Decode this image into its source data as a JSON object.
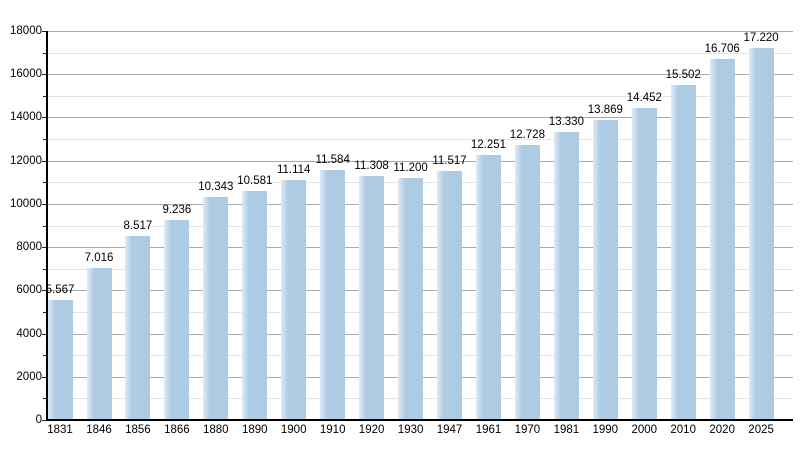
{
  "chart_data": {
    "type": "bar",
    "title": "",
    "xlabel": "",
    "ylabel": "",
    "categories": [
      "1831",
      "1846",
      "1856",
      "1866",
      "1880",
      "1890",
      "1900",
      "1910",
      "1920",
      "1930",
      "1947",
      "1961",
      "1970",
      "1981",
      "1990",
      "2000",
      "2010",
      "2020",
      "2025"
    ],
    "values": [
      5567,
      7016,
      8517,
      9236,
      10343,
      10581,
      11114,
      11584,
      11308,
      11200,
      11517,
      12251,
      12728,
      13330,
      13869,
      14452,
      15502,
      16706,
      17220
    ],
    "value_labels": [
      "5.567",
      "7.016",
      "8.517",
      "9.236",
      "10.343",
      "10.581",
      "11.114",
      "11.584",
      "11.308",
      "11.200",
      "11.517",
      "12.251",
      "12.728",
      "13.330",
      "13.869",
      "14.452",
      "15.502",
      "16.706",
      "17.220"
    ],
    "ylim": [
      0,
      18000
    ],
    "y_major_step": 2000,
    "y_minor_step": 1000,
    "y_tick_labels": [
      "0",
      "2000",
      "4000",
      "6000",
      "8000",
      "10000",
      "12000",
      "14000",
      "16000",
      "18000"
    ],
    "grid": true,
    "legend_position": "none",
    "colors": {
      "bar_fill": "#aecbe4",
      "bar_highlight": "#dfeaf5",
      "grid_major": "#a9a9a9",
      "grid_minor": "#e4e4e4",
      "axis": "#000000",
      "text": "#000000",
      "background": "#ffffff"
    }
  }
}
